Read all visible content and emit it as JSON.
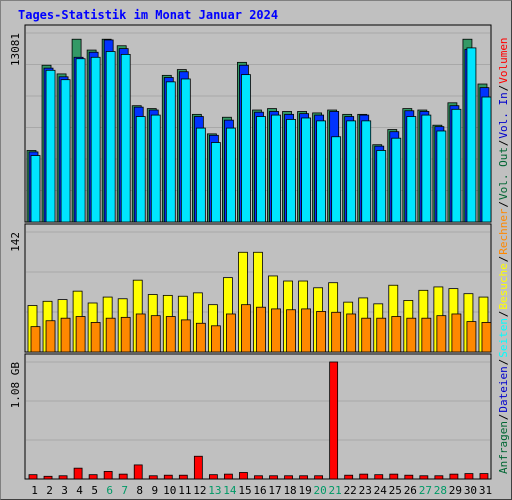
{
  "title": "Tages-Statistik im Monat Januar 2024",
  "legend_right": {
    "panel1": [
      {
        "label": "Anfragen",
        "color": "#006633"
      },
      {
        "label": "/",
        "color": "#000000"
      },
      {
        "label": "Dateien",
        "color": "#0000cc"
      },
      {
        "label": "/",
        "color": "#000000"
      },
      {
        "label": "Seiten",
        "color": "#00ffff"
      },
      {
        "label": "/",
        "color": "#000000"
      },
      {
        "label": "Besuche",
        "color": "#ffff00"
      },
      {
        "label": "/",
        "color": "#000000"
      },
      {
        "label": "Rechner",
        "color": "#ff8800"
      },
      {
        "label": "/",
        "color": "#000000"
      },
      {
        "label": "Vol. Out",
        "color": "#006633"
      },
      {
        "label": "/",
        "color": "#000000"
      },
      {
        "label": "Vol. In",
        "color": "#0000cc"
      },
      {
        "label": "/",
        "color": "#000000"
      },
      {
        "label": "Volumen",
        "color": "#ff0000"
      }
    ]
  },
  "chart_data": [
    {
      "type": "bar",
      "panel": "hits",
      "y_max_label": "13081",
      "y_max": 13081,
      "categories": [
        "1",
        "2",
        "3",
        "4",
        "5",
        "6",
        "7",
        "8",
        "9",
        "10",
        "11",
        "12",
        "13",
        "14",
        "15",
        "16",
        "17",
        "18",
        "19",
        "20",
        "21",
        "22",
        "23",
        "24",
        "25",
        "26",
        "27",
        "28",
        "29",
        "30",
        "31"
      ],
      "weekend_days": [
        "6",
        "7",
        "13",
        "14",
        "20",
        "21",
        "27",
        "28"
      ],
      "series": [
        {
          "name": "Anfragen",
          "color": "#339966",
          "values": [
            4950,
            10850,
            10250,
            12650,
            11900,
            12650,
            12200,
            8050,
            7850,
            10150,
            10550,
            7450,
            6100,
            7250,
            11050,
            7750,
            7850,
            7650,
            7650,
            7550,
            7750,
            7450,
            7450,
            5350,
            6400,
            7850,
            7750,
            6700,
            8250,
            12650,
            9550
          ]
        },
        {
          "name": "Dateien",
          "color": "#0033ff",
          "values": [
            4850,
            10650,
            10050,
            11400,
            11750,
            12600,
            12000,
            7950,
            7750,
            10000,
            10400,
            7300,
            6000,
            7050,
            10850,
            7600,
            7650,
            7450,
            7500,
            7400,
            7650,
            7300,
            7400,
            5250,
            6250,
            7700,
            7650,
            6600,
            8050,
            11950,
            9300
          ]
        },
        {
          "name": "Seiten",
          "color": "#00e5ff",
          "values": [
            4600,
            10500,
            9850,
            11300,
            11400,
            11800,
            11600,
            7300,
            7400,
            9700,
            9900,
            6500,
            5500,
            6500,
            10200,
            7300,
            7400,
            7100,
            7200,
            7000,
            5900,
            7000,
            7000,
            4950,
            5800,
            7300,
            7400,
            6300,
            7800,
            12050,
            8650
          ]
        }
      ]
    },
    {
      "type": "bar",
      "panel": "visits",
      "y_max_label": "142",
      "y_max": 142,
      "series": [
        {
          "name": "Besuche",
          "color": "#ffff00",
          "values": [
            55,
            60,
            62,
            72,
            58,
            65,
            63,
            85,
            68,
            67,
            66,
            70,
            56,
            88,
            118,
            118,
            90,
            84,
            84,
            76,
            82,
            59,
            64,
            57,
            79,
            61,
            73,
            77,
            75,
            69,
            65
          ]
        },
        {
          "name": "Rechner",
          "color": "#ff8800",
          "values": [
            30,
            37,
            40,
            42,
            35,
            40,
            41,
            45,
            43,
            42,
            38,
            34,
            31,
            45,
            56,
            53,
            51,
            50,
            51,
            48,
            47,
            45,
            40,
            40,
            42,
            40,
            40,
            43,
            45,
            36,
            35
          ]
        }
      ]
    },
    {
      "type": "bar",
      "panel": "volume",
      "y_max_label": "1.08 GB",
      "y_max": 1.08,
      "series": [
        {
          "name": "Volumen",
          "color": "#ff0000",
          "values": [
            0.04,
            0.025,
            0.03,
            0.1,
            0.04,
            0.07,
            0.045,
            0.13,
            0.03,
            0.035,
            0.035,
            0.21,
            0.04,
            0.045,
            0.06,
            0.03,
            0.03,
            0.03,
            0.03,
            0.03,
            1.08,
            0.035,
            0.045,
            0.04,
            0.045,
            0.035,
            0.03,
            0.03,
            0.045,
            0.05,
            0.05
          ]
        }
      ]
    }
  ]
}
